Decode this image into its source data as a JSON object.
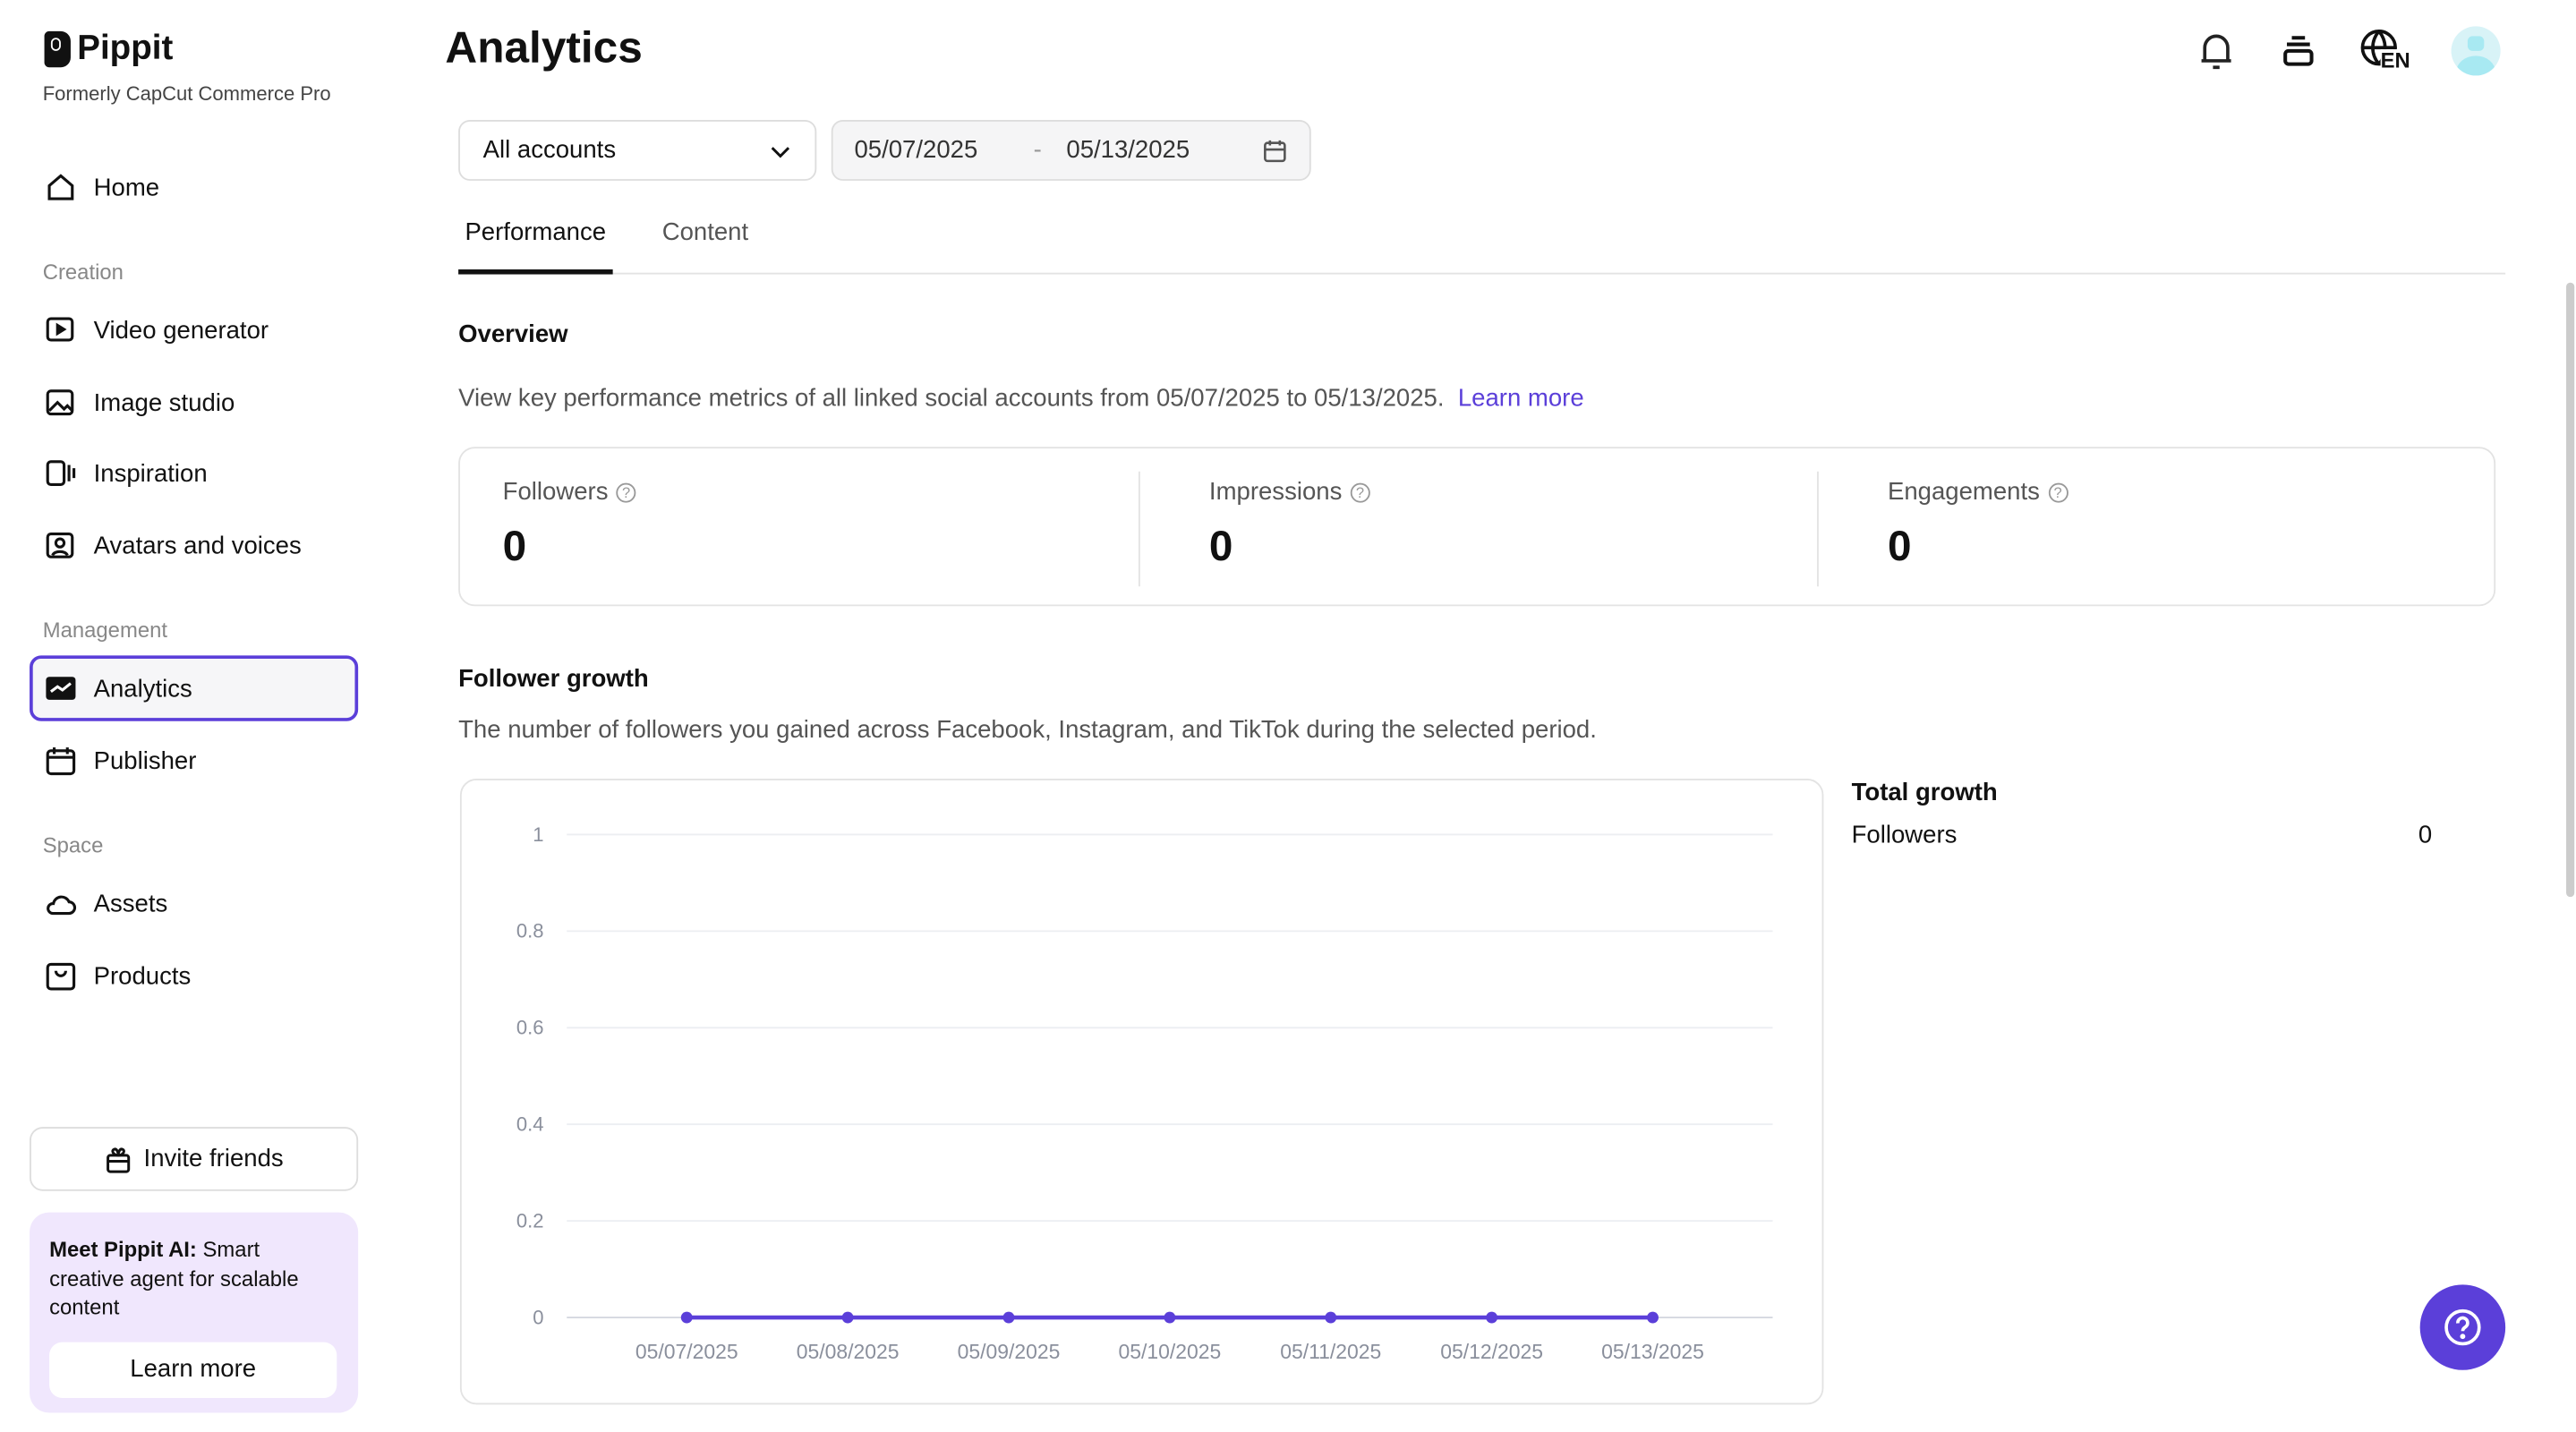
{
  "brand": {
    "name": "Pippit",
    "tagline": "Formerly CapCut Commerce Pro"
  },
  "sidebar": {
    "home": "Home",
    "sections": [
      {
        "title": "Creation",
        "items": [
          "Video generator",
          "Image studio",
          "Inspiration",
          "Avatars and voices"
        ]
      },
      {
        "title": "Management",
        "items": [
          "Analytics",
          "Publisher"
        ]
      },
      {
        "title": "Space",
        "items": [
          "Assets",
          "Products"
        ]
      }
    ],
    "active": "Analytics",
    "invite_label": "Invite friends",
    "promo": {
      "bold": "Meet Pippit AI:",
      "text": " Smart creative agent for scalable content",
      "button": "Learn more"
    }
  },
  "header": {
    "title": "Analytics",
    "lang": "EN",
    "icons": [
      "bell-icon",
      "stack-icon",
      "globe-language-icon",
      "avatar"
    ]
  },
  "filters": {
    "account": "All accounts",
    "date_from": "05/07/2025",
    "date_sep": "-",
    "date_to": "05/13/2025"
  },
  "tabs": [
    {
      "label": "Performance",
      "active": true
    },
    {
      "label": "Content",
      "active": false
    }
  ],
  "overview": {
    "title": "Overview",
    "description": "View key performance metrics of all linked social accounts from 05/07/2025 to 05/13/2025.",
    "link": "Learn more",
    "metrics": [
      {
        "label": "Followers",
        "value": "0"
      },
      {
        "label": "Impressions",
        "value": "0"
      },
      {
        "label": "Engagements",
        "value": "0"
      }
    ]
  },
  "follower_growth": {
    "title": "Follower growth",
    "description": "The number of followers you gained across Facebook, Instagram, and TikTok during the selected period.",
    "total": {
      "title": "Total growth",
      "label": "Followers",
      "value": "0"
    }
  },
  "chart_data": {
    "type": "line",
    "x": [
      "05/07/2025",
      "05/08/2025",
      "05/09/2025",
      "05/10/2025",
      "05/11/2025",
      "05/12/2025",
      "05/13/2025"
    ],
    "series": [
      {
        "values": [
          0,
          0,
          0,
          0,
          0,
          0,
          0
        ],
        "color": "#5b3fd9"
      }
    ],
    "yticks": [
      "0",
      "0.2",
      "0.4",
      "0.6",
      "0.8",
      "1"
    ],
    "ylim": [
      0,
      1
    ],
    "grid": true
  },
  "colors": {
    "accent": "#5b3fd9",
    "promo_bg": "#f0e7fd"
  }
}
